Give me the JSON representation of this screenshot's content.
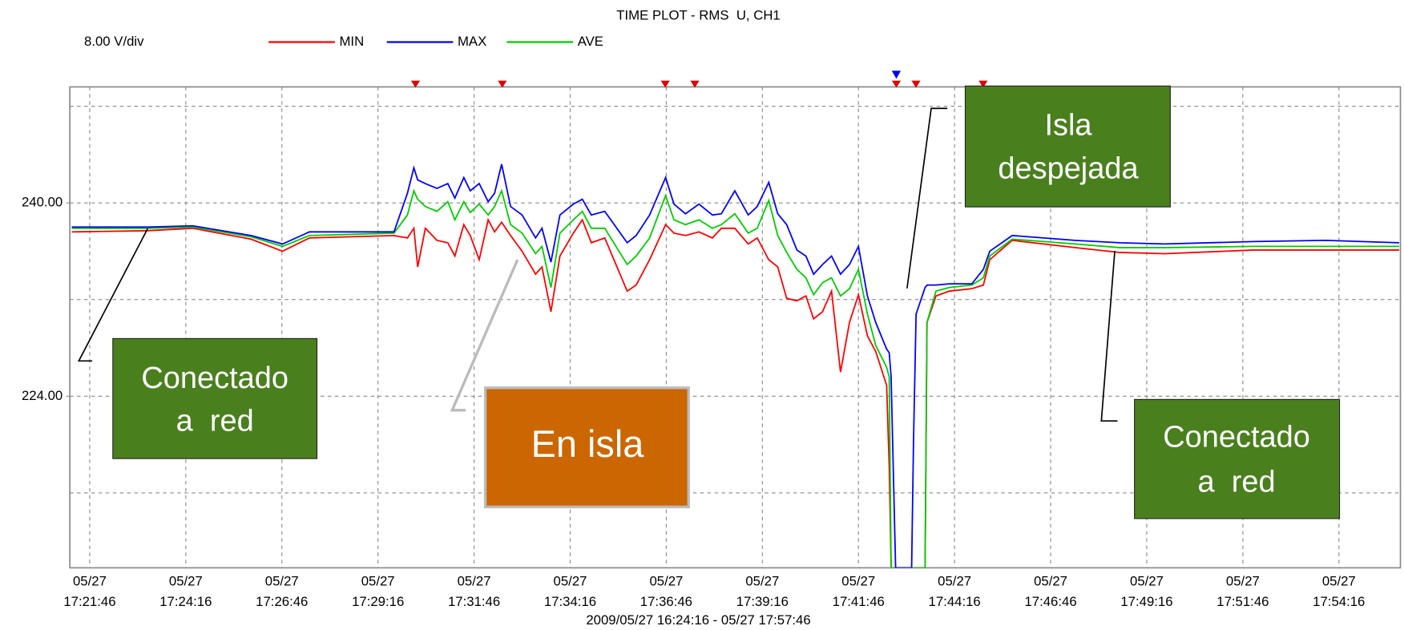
{
  "chart_data": {
    "type": "line",
    "title": "TIME PLOT - RMS  U, CH1",
    "scale_label": "8.00 V/div",
    "footer": "2009/05/27 16:24:16 - 05/27 17:57:46",
    "x": [
      "17:21:18",
      "17:23:17",
      "17:24:27",
      "17:25:58",
      "17:26:47",
      "17:27:29",
      "17:29:41",
      "17:30:02",
      "17:30:12",
      "17:30:18",
      "17:30:30",
      "17:30:48",
      "17:31:05",
      "17:31:16",
      "17:31:30",
      "17:31:40",
      "17:31:54",
      "17:32:08",
      "17:32:18",
      "17:32:29",
      "17:32:43",
      "17:33:01",
      "17:33:22",
      "17:33:32",
      "17:33:46",
      "17:34:00",
      "17:34:21",
      "17:34:35",
      "17:34:49",
      "17:35:10",
      "17:35:45",
      "17:35:59",
      "17:36:20",
      "17:36:45",
      "17:36:58",
      "17:37:16",
      "17:37:37",
      "17:37:58",
      "17:38:12",
      "17:38:33",
      "17:38:54",
      "17:39:08",
      "17:39:26",
      "17:39:40",
      "17:39:54",
      "17:40:10",
      "17:40:24",
      "17:40:36",
      "17:40:50",
      "17:41:04",
      "17:41:18",
      "17:41:32",
      "17:41:46",
      "17:42:00",
      "17:42:13",
      "17:42:30",
      "17:42:34",
      "17:42:37",
      "17:42:44",
      "17:43:09",
      "17:43:12",
      "17:43:16",
      "17:43:30",
      "17:43:33",
      "17:43:47",
      "17:44:08",
      "17:44:43",
      "17:45:01",
      "17:45:11",
      "17:45:46",
      "17:47:24",
      "17:48:34",
      "17:49:44",
      "17:52:03",
      "17:53:55",
      "17:55:50"
    ],
    "series": [
      {
        "name": "MIN",
        "color": "#ff0000",
        "values": [
          237.6,
          237.7,
          237.9,
          237.0,
          236.0,
          237.1,
          237.3,
          237.1,
          237.9,
          234.7,
          237.9,
          236.9,
          236.7,
          235.6,
          238.2,
          237.3,
          235.3,
          238.6,
          237.6,
          238.4,
          237.3,
          236.0,
          234.1,
          234.7,
          231.0,
          235.6,
          237.5,
          238.6,
          236.7,
          237.1,
          232.7,
          233.2,
          235.3,
          238.2,
          237.5,
          237.3,
          237.6,
          237.1,
          237.9,
          237.9,
          236.6,
          237.1,
          235.3,
          234.7,
          232.1,
          231.9,
          232.3,
          230.4,
          231.0,
          232.7,
          226.0,
          230.1,
          232.4,
          229.0,
          227.7,
          224.9,
          218.2,
          209.8,
          209.8,
          209.8,
          209.8,
          209.8,
          209.8,
          230.1,
          232.3,
          232.7,
          232.9,
          233.2,
          235.3,
          236.9,
          236.3,
          235.9,
          235.8,
          236.1,
          236.1,
          236.1
        ]
      },
      {
        "name": "MAX",
        "color": "#0000ff",
        "values": [
          238.0,
          238.0,
          238.1,
          237.3,
          236.6,
          237.6,
          237.6,
          240.8,
          242.9,
          241.9,
          241.6,
          241.2,
          241.6,
          240.4,
          242.1,
          241.0,
          241.6,
          240.1,
          240.8,
          243.2,
          239.7,
          239.0,
          237.1,
          237.9,
          235.1,
          239.0,
          239.9,
          240.3,
          239.0,
          239.3,
          236.7,
          237.3,
          239.0,
          242.1,
          239.9,
          239.1,
          239.9,
          239.0,
          239.1,
          241.0,
          239.0,
          239.7,
          241.7,
          239.1,
          238.2,
          236.1,
          235.6,
          234.1,
          234.9,
          235.6,
          234.1,
          234.9,
          236.4,
          232.3,
          230.1,
          227.9,
          227.6,
          225.6,
          209.8,
          209.8,
          220.4,
          230.8,
          233.0,
          233.2,
          233.2,
          233.3,
          233.3,
          234.5,
          236.0,
          237.3,
          236.9,
          236.7,
          236.6,
          236.8,
          236.9,
          236.7
        ]
      },
      {
        "name": "AVE",
        "color": "#00cc00",
        "values": [
          237.9,
          237.9,
          238.0,
          237.2,
          236.4,
          237.3,
          237.5,
          239.0,
          241.0,
          240.3,
          239.7,
          239.3,
          240.1,
          238.6,
          240.1,
          239.2,
          239.9,
          239.0,
          239.7,
          241.0,
          238.2,
          237.5,
          235.8,
          236.4,
          233.0,
          237.5,
          238.6,
          239.3,
          237.9,
          237.9,
          234.9,
          235.6,
          237.1,
          240.6,
          238.6,
          238.2,
          238.6,
          237.9,
          238.2,
          239.1,
          237.5,
          237.9,
          240.2,
          237.3,
          235.9,
          234.5,
          233.8,
          232.4,
          233.4,
          233.8,
          232.3,
          232.9,
          234.5,
          230.8,
          228.2,
          226.4,
          225.6,
          209.8,
          209.8,
          209.8,
          209.8,
          209.8,
          209.8,
          230.1,
          232.7,
          233.0,
          233.2,
          233.8,
          235.6,
          237.0,
          236.6,
          236.3,
          236.3,
          236.4,
          236.4,
          236.4
        ]
      }
    ],
    "xlim": [
      "17:21:15",
      "17:55:52"
    ],
    "xticks": [
      {
        "value": "17:21:46",
        "label": "05/27 17:21:46"
      },
      {
        "value": "17:24:16",
        "label": "05/27 17:24:16"
      },
      {
        "value": "17:26:46",
        "label": "05/27 17:26:46"
      },
      {
        "value": "17:29:16",
        "label": "05/27 17:29:16"
      },
      {
        "value": "17:31:46",
        "label": "05/27 17:31:46"
      },
      {
        "value": "17:34:16",
        "label": "05/27 17:34:16"
      },
      {
        "value": "17:36:46",
        "label": "05/27 17:36:46"
      },
      {
        "value": "17:39:16",
        "label": "05/27 17:39:16"
      },
      {
        "value": "17:41:46",
        "label": "05/27 17:41:46"
      },
      {
        "value": "17:44:16",
        "label": "05/27 17:44:16"
      },
      {
        "value": "17:46:46",
        "label": "05/27 17:46:46"
      },
      {
        "value": "17:49:16",
        "label": "05/27 17:49:16"
      },
      {
        "value": "17:51:46",
        "label": "05/27 17:51:46"
      },
      {
        "value": "17:54:16",
        "label": "05/27 17:54:16"
      }
    ],
    "ylim": [
      209.8,
      249.6
    ],
    "yticks": [
      {
        "value": 224,
        "label": "224.00"
      },
      {
        "value": 240,
        "label": "240.00"
      }
    ],
    "ygrid": [
      216,
      224,
      232,
      240,
      248
    ],
    "grid": true,
    "legend": "top",
    "annotations": [
      {
        "lines": [
          "Conectado",
          "a  red"
        ]
      },
      {
        "lines": [
          "En isla"
        ]
      },
      {
        "lines": [
          "Isla",
          "despejada"
        ]
      },
      {
        "lines": [
          "Conectado",
          "a  red"
        ]
      }
    ]
  }
}
